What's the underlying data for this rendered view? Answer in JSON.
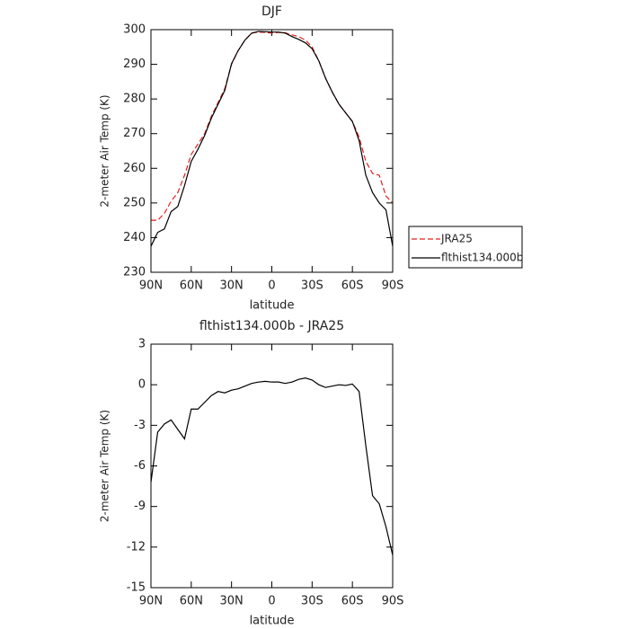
{
  "chart_data": [
    {
      "type": "line",
      "title": "DJF",
      "xlabel": "latitude",
      "ylabel": "2-meter Air Temp (K)",
      "x": [
        90,
        85,
        80,
        75,
        70,
        65,
        60,
        55,
        50,
        45,
        40,
        35,
        30,
        25,
        20,
        15,
        10,
        5,
        0,
        -5,
        -10,
        -15,
        -20,
        -25,
        -30,
        -35,
        -40,
        -45,
        -50,
        -55,
        -60,
        -65,
        -70,
        -75,
        -80,
        -85,
        -90
      ],
      "xlim": [
        90,
        -90
      ],
      "xticks": [
        {
          "value": 90,
          "label": "90N"
        },
        {
          "value": 60,
          "label": "60N"
        },
        {
          "value": 30,
          "label": "30N"
        },
        0,
        {
          "value": -30,
          "label": "30S"
        },
        {
          "value": -60,
          "label": "60S"
        },
        {
          "value": -90,
          "label": "90S"
        }
      ],
      "ylim": [
        230,
        300
      ],
      "yticks": [
        230,
        240,
        250,
        260,
        270,
        280,
        290,
        300
      ],
      "legend": "right",
      "series": [
        {
          "name": "JRA25",
          "color": "#e0201b",
          "dash": true,
          "values": [
            245,
            245,
            247,
            250.5,
            253,
            258,
            264,
            267,
            270,
            275,
            279,
            283,
            290,
            294,
            297,
            299,
            299.3,
            299.2,
            299,
            299.2,
            299.1,
            298.5,
            298,
            297,
            295,
            291,
            286,
            282,
            278.5,
            276,
            273.5,
            269,
            262,
            258.5,
            258,
            252,
            250
          ]
        },
        {
          "name": "flthist134.000b",
          "color": "#000000",
          "dash": false,
          "values": [
            237.5,
            241.5,
            242.5,
            247.5,
            249,
            255,
            262,
            265.5,
            269.5,
            274.5,
            278.5,
            282.5,
            290.2,
            294,
            297,
            299,
            299.5,
            299.4,
            299.3,
            299.3,
            299,
            298,
            297.2,
            296.2,
            294.5,
            291,
            286,
            282,
            278.5,
            276,
            273.5,
            268,
            258,
            253,
            250,
            248,
            237.5
          ]
        }
      ]
    },
    {
      "type": "line",
      "title": "flthist134.000b - JRA25",
      "xlabel": "latitude",
      "ylabel": "2-meter Air Temp (K)",
      "x": [
        90,
        85,
        80,
        75,
        70,
        65,
        60,
        55,
        50,
        45,
        40,
        35,
        30,
        25,
        20,
        15,
        10,
        5,
        0,
        -5,
        -10,
        -15,
        -20,
        -25,
        -30,
        -35,
        -40,
        -45,
        -50,
        -55,
        -60,
        -65,
        -70,
        -75,
        -80,
        -85,
        -90
      ],
      "xlim": [
        90,
        -90
      ],
      "xticks": [
        {
          "value": 90,
          "label": "90N"
        },
        {
          "value": 60,
          "label": "60N"
        },
        {
          "value": 30,
          "label": "30N"
        },
        0,
        {
          "value": -30,
          "label": "30S"
        },
        {
          "value": -60,
          "label": "60S"
        },
        {
          "value": -90,
          "label": "90S"
        }
      ],
      "ylim": [
        -15,
        3
      ],
      "yticks": [
        -15,
        -12,
        -9,
        -6,
        -3,
        0,
        3
      ],
      "series": [
        {
          "color": "#000000",
          "dash": false,
          "values": [
            -7.2,
            -3.5,
            -2.9,
            -2.6,
            -3.3,
            -4,
            -1.8,
            -1.8,
            -1.3,
            -0.8,
            -0.5,
            -0.6,
            -0.4,
            -0.3,
            -0.1,
            0.1,
            0.2,
            0.25,
            0.2,
            0.2,
            0.1,
            0.2,
            0.4,
            0.5,
            0.35,
            0,
            -0.2,
            -0.1,
            0,
            -0.05,
            0.05,
            -0.5,
            -4.5,
            -8.2,
            -8.8,
            -10.5,
            -12.6
          ]
        }
      ]
    }
  ]
}
